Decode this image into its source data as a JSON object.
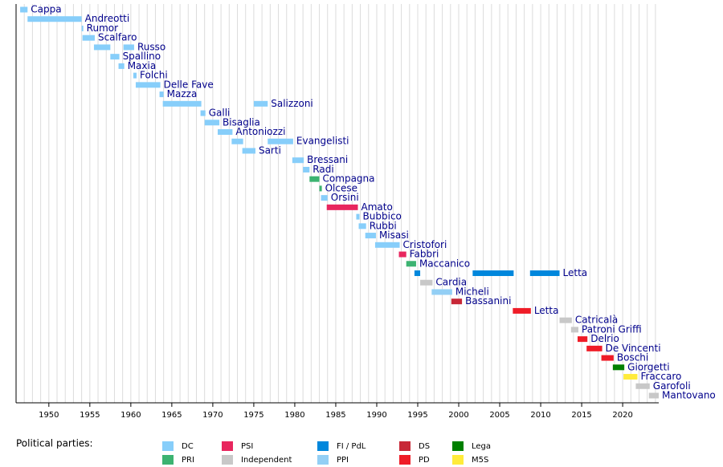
{
  "chart_data": {
    "type": "timeline",
    "xlim": [
      1946,
      2024.4
    ],
    "xticks": [
      1950,
      1955,
      1960,
      1965,
      1970,
      1975,
      1980,
      1985,
      1990,
      1995,
      2000,
      2005,
      2010,
      2015,
      2020
    ],
    "xminor": [
      1947,
      1948,
      1949,
      1950,
      1951,
      1952,
      1953,
      1954,
      1955,
      1956,
      1957,
      1958,
      1959,
      1960,
      1961,
      1962,
      1963,
      1964,
      1965,
      1966,
      1967,
      1968,
      1969,
      1970,
      1971,
      1972,
      1973,
      1974,
      1975,
      1976,
      1977,
      1978,
      1979,
      1980,
      1981,
      1982,
      1983,
      1984,
      1985,
      1986,
      1987,
      1988,
      1989,
      1990,
      1991,
      1992,
      1993,
      1994,
      1995,
      1996,
      1997,
      1998,
      1999,
      2000,
      2001,
      2002,
      2003,
      2004,
      2005,
      2006,
      2007,
      2008,
      2009,
      2010,
      2011,
      2012,
      2013,
      2014,
      2015,
      2016,
      2017,
      2018,
      2019,
      2020,
      2021,
      2022,
      2023,
      2024
    ],
    "grid": true,
    "legend_title": "Political parties:",
    "parties": [
      {
        "name": "DC",
        "color": "#87cefa"
      },
      {
        "name": "PRI",
        "color": "#3cb371"
      },
      {
        "name": "PSI",
        "color": "#e8265e"
      },
      {
        "name": "Independent",
        "color": "#c8c8c8"
      },
      {
        "name": "FI / PdL",
        "color": "#0087dc"
      },
      {
        "name": "PPI",
        "color": "#93cff5"
      },
      {
        "name": "DS",
        "color": "#c72837"
      },
      {
        "name": "PD",
        "color": "#ef1c27"
      },
      {
        "name": "Lega",
        "color": "#008000"
      },
      {
        "name": "M5S",
        "color": "#ffeb3b"
      }
    ],
    "rows": [
      {
        "label": "Cappa",
        "bars": [
          {
            "start": 1946.5,
            "end": 1947.4,
            "color": "#87cefa"
          }
        ]
      },
      {
        "label": "Andreotti",
        "bars": [
          {
            "start": 1947.4,
            "end": 1954.0,
            "color": "#87cefa"
          }
        ]
      },
      {
        "label": "Rumor",
        "bars": [
          {
            "start": 1954.0,
            "end": 1954.2,
            "color": "#87cefa"
          }
        ]
      },
      {
        "label": "Scalfaro",
        "bars": [
          {
            "start": 1954.1,
            "end": 1955.6,
            "color": "#87cefa"
          }
        ]
      },
      {
        "label": "Russo",
        "bars": [
          {
            "start": 1955.5,
            "end": 1957.5,
            "color": "#87cefa"
          },
          {
            "start": 1959.1,
            "end": 1960.4,
            "color": "#87cefa"
          }
        ]
      },
      {
        "label": "Spallino",
        "bars": [
          {
            "start": 1957.5,
            "end": 1958.6,
            "color": "#87cefa"
          }
        ]
      },
      {
        "label": "Maxia",
        "bars": [
          {
            "start": 1958.5,
            "end": 1959.2,
            "color": "#87cefa"
          }
        ]
      },
      {
        "label": "Folchi",
        "bars": [
          {
            "start": 1960.3,
            "end": 1960.7,
            "color": "#87cefa"
          }
        ]
      },
      {
        "label": "Delle Fave",
        "bars": [
          {
            "start": 1960.6,
            "end": 1963.6,
            "color": "#87cefa"
          }
        ]
      },
      {
        "label": "Mazza",
        "bars": [
          {
            "start": 1963.5,
            "end": 1964.0,
            "color": "#87cefa"
          }
        ]
      },
      {
        "label": "Salizzoni",
        "bars": [
          {
            "start": 1963.9,
            "end": 1968.6,
            "color": "#87cefa"
          },
          {
            "start": 1975.0,
            "end": 1976.7,
            "color": "#87cefa"
          }
        ]
      },
      {
        "label": "Galli",
        "bars": [
          {
            "start": 1968.5,
            "end": 1969.1,
            "color": "#87cefa"
          }
        ]
      },
      {
        "label": "Bisaglia",
        "bars": [
          {
            "start": 1969.0,
            "end": 1970.8,
            "color": "#87cefa"
          }
        ]
      },
      {
        "label": "Antoniozzi",
        "bars": [
          {
            "start": 1970.6,
            "end": 1972.4,
            "color": "#87cefa"
          }
        ]
      },
      {
        "label": "Evangelisti",
        "bars": [
          {
            "start": 1972.3,
            "end": 1973.7,
            "color": "#87cefa"
          },
          {
            "start": 1976.7,
            "end": 1979.8,
            "color": "#87cefa"
          }
        ]
      },
      {
        "label": "Sarti",
        "bars": [
          {
            "start": 1973.6,
            "end": 1975.2,
            "color": "#87cefa"
          }
        ]
      },
      {
        "label": "Bressani",
        "bars": [
          {
            "start": 1979.7,
            "end": 1981.1,
            "color": "#87cefa"
          }
        ]
      },
      {
        "label": "Radi",
        "bars": [
          {
            "start": 1981.0,
            "end": 1981.8,
            "color": "#87cefa"
          }
        ]
      },
      {
        "label": "Compagna",
        "bars": [
          {
            "start": 1981.8,
            "end": 1983.0,
            "color": "#3cb371"
          }
        ]
      },
      {
        "label": "Olcese",
        "bars": [
          {
            "start": 1983.0,
            "end": 1983.3,
            "color": "#3cb371"
          }
        ]
      },
      {
        "label": "Orsini",
        "bars": [
          {
            "start": 1983.2,
            "end": 1984.0,
            "color": "#87cefa"
          }
        ]
      },
      {
        "label": "Amato",
        "bars": [
          {
            "start": 1983.9,
            "end": 1987.7,
            "color": "#e8265e"
          }
        ]
      },
      {
        "label": "Bubbico",
        "bars": [
          {
            "start": 1987.5,
            "end": 1987.9,
            "color": "#87cefa"
          }
        ]
      },
      {
        "label": "Rubbi",
        "bars": [
          {
            "start": 1987.8,
            "end": 1988.7,
            "color": "#87cefa"
          }
        ]
      },
      {
        "label": "Misasi",
        "bars": [
          {
            "start": 1988.6,
            "end": 1989.9,
            "color": "#87cefa"
          }
        ]
      },
      {
        "label": "Cristofori",
        "bars": [
          {
            "start": 1989.8,
            "end": 1992.8,
            "color": "#87cefa"
          }
        ]
      },
      {
        "label": "Fabbri",
        "bars": [
          {
            "start": 1992.7,
            "end": 1993.6,
            "color": "#e8265e"
          }
        ]
      },
      {
        "label": "Maccanico",
        "bars": [
          {
            "start": 1993.6,
            "end": 1994.8,
            "color": "#3cb371"
          }
        ]
      },
      {
        "label": "Letta",
        "bars": [
          {
            "start": 1994.6,
            "end": 1995.3,
            "color": "#0087dc"
          },
          {
            "start": 2001.7,
            "end": 2006.7,
            "color": "#0087dc"
          },
          {
            "start": 2008.7,
            "end": 2012.3,
            "color": "#0087dc"
          }
        ]
      },
      {
        "label": "Cardia",
        "bars": [
          {
            "start": 1995.3,
            "end": 1996.8,
            "color": "#c8c8c8"
          }
        ]
      },
      {
        "label": "Micheli",
        "bars": [
          {
            "start": 1996.7,
            "end": 1999.2,
            "color": "#93cff5"
          }
        ]
      },
      {
        "label": "Bassanini",
        "bars": [
          {
            "start": 1999.1,
            "end": 2000.4,
            "color": "#c72837"
          }
        ]
      },
      {
        "label": "Letta",
        "bars": [
          {
            "start": 2006.6,
            "end": 2008.8,
            "color": "#ef1c27"
          }
        ]
      },
      {
        "label": "Catricalà",
        "bars": [
          {
            "start": 2012.3,
            "end": 2013.8,
            "color": "#c8c8c8"
          }
        ]
      },
      {
        "label": "Patroni Griffi",
        "bars": [
          {
            "start": 2013.7,
            "end": 2014.6,
            "color": "#c8c8c8"
          }
        ]
      },
      {
        "label": "Delrio",
        "bars": [
          {
            "start": 2014.5,
            "end": 2015.7,
            "color": "#ef1c27"
          }
        ]
      },
      {
        "label": "De Vincenti",
        "bars": [
          {
            "start": 2015.6,
            "end": 2017.5,
            "color": "#ef1c27"
          }
        ]
      },
      {
        "label": "Boschi",
        "bars": [
          {
            "start": 2017.4,
            "end": 2018.9,
            "color": "#ef1c27"
          }
        ]
      },
      {
        "label": "Giorgetti",
        "bars": [
          {
            "start": 2018.8,
            "end": 2020.2,
            "color": "#008000"
          }
        ]
      },
      {
        "label": "Fraccaro",
        "bars": [
          {
            "start": 2020.1,
            "end": 2021.8,
            "color": "#ffeb3b"
          }
        ]
      },
      {
        "label": "Garofoli",
        "bars": [
          {
            "start": 2021.6,
            "end": 2023.3,
            "color": "#c8c8c8"
          }
        ]
      },
      {
        "label": "Mantovano",
        "bars": [
          {
            "start": 2023.2,
            "end": 2024.4,
            "color": "#c8c8c8"
          }
        ]
      }
    ]
  }
}
